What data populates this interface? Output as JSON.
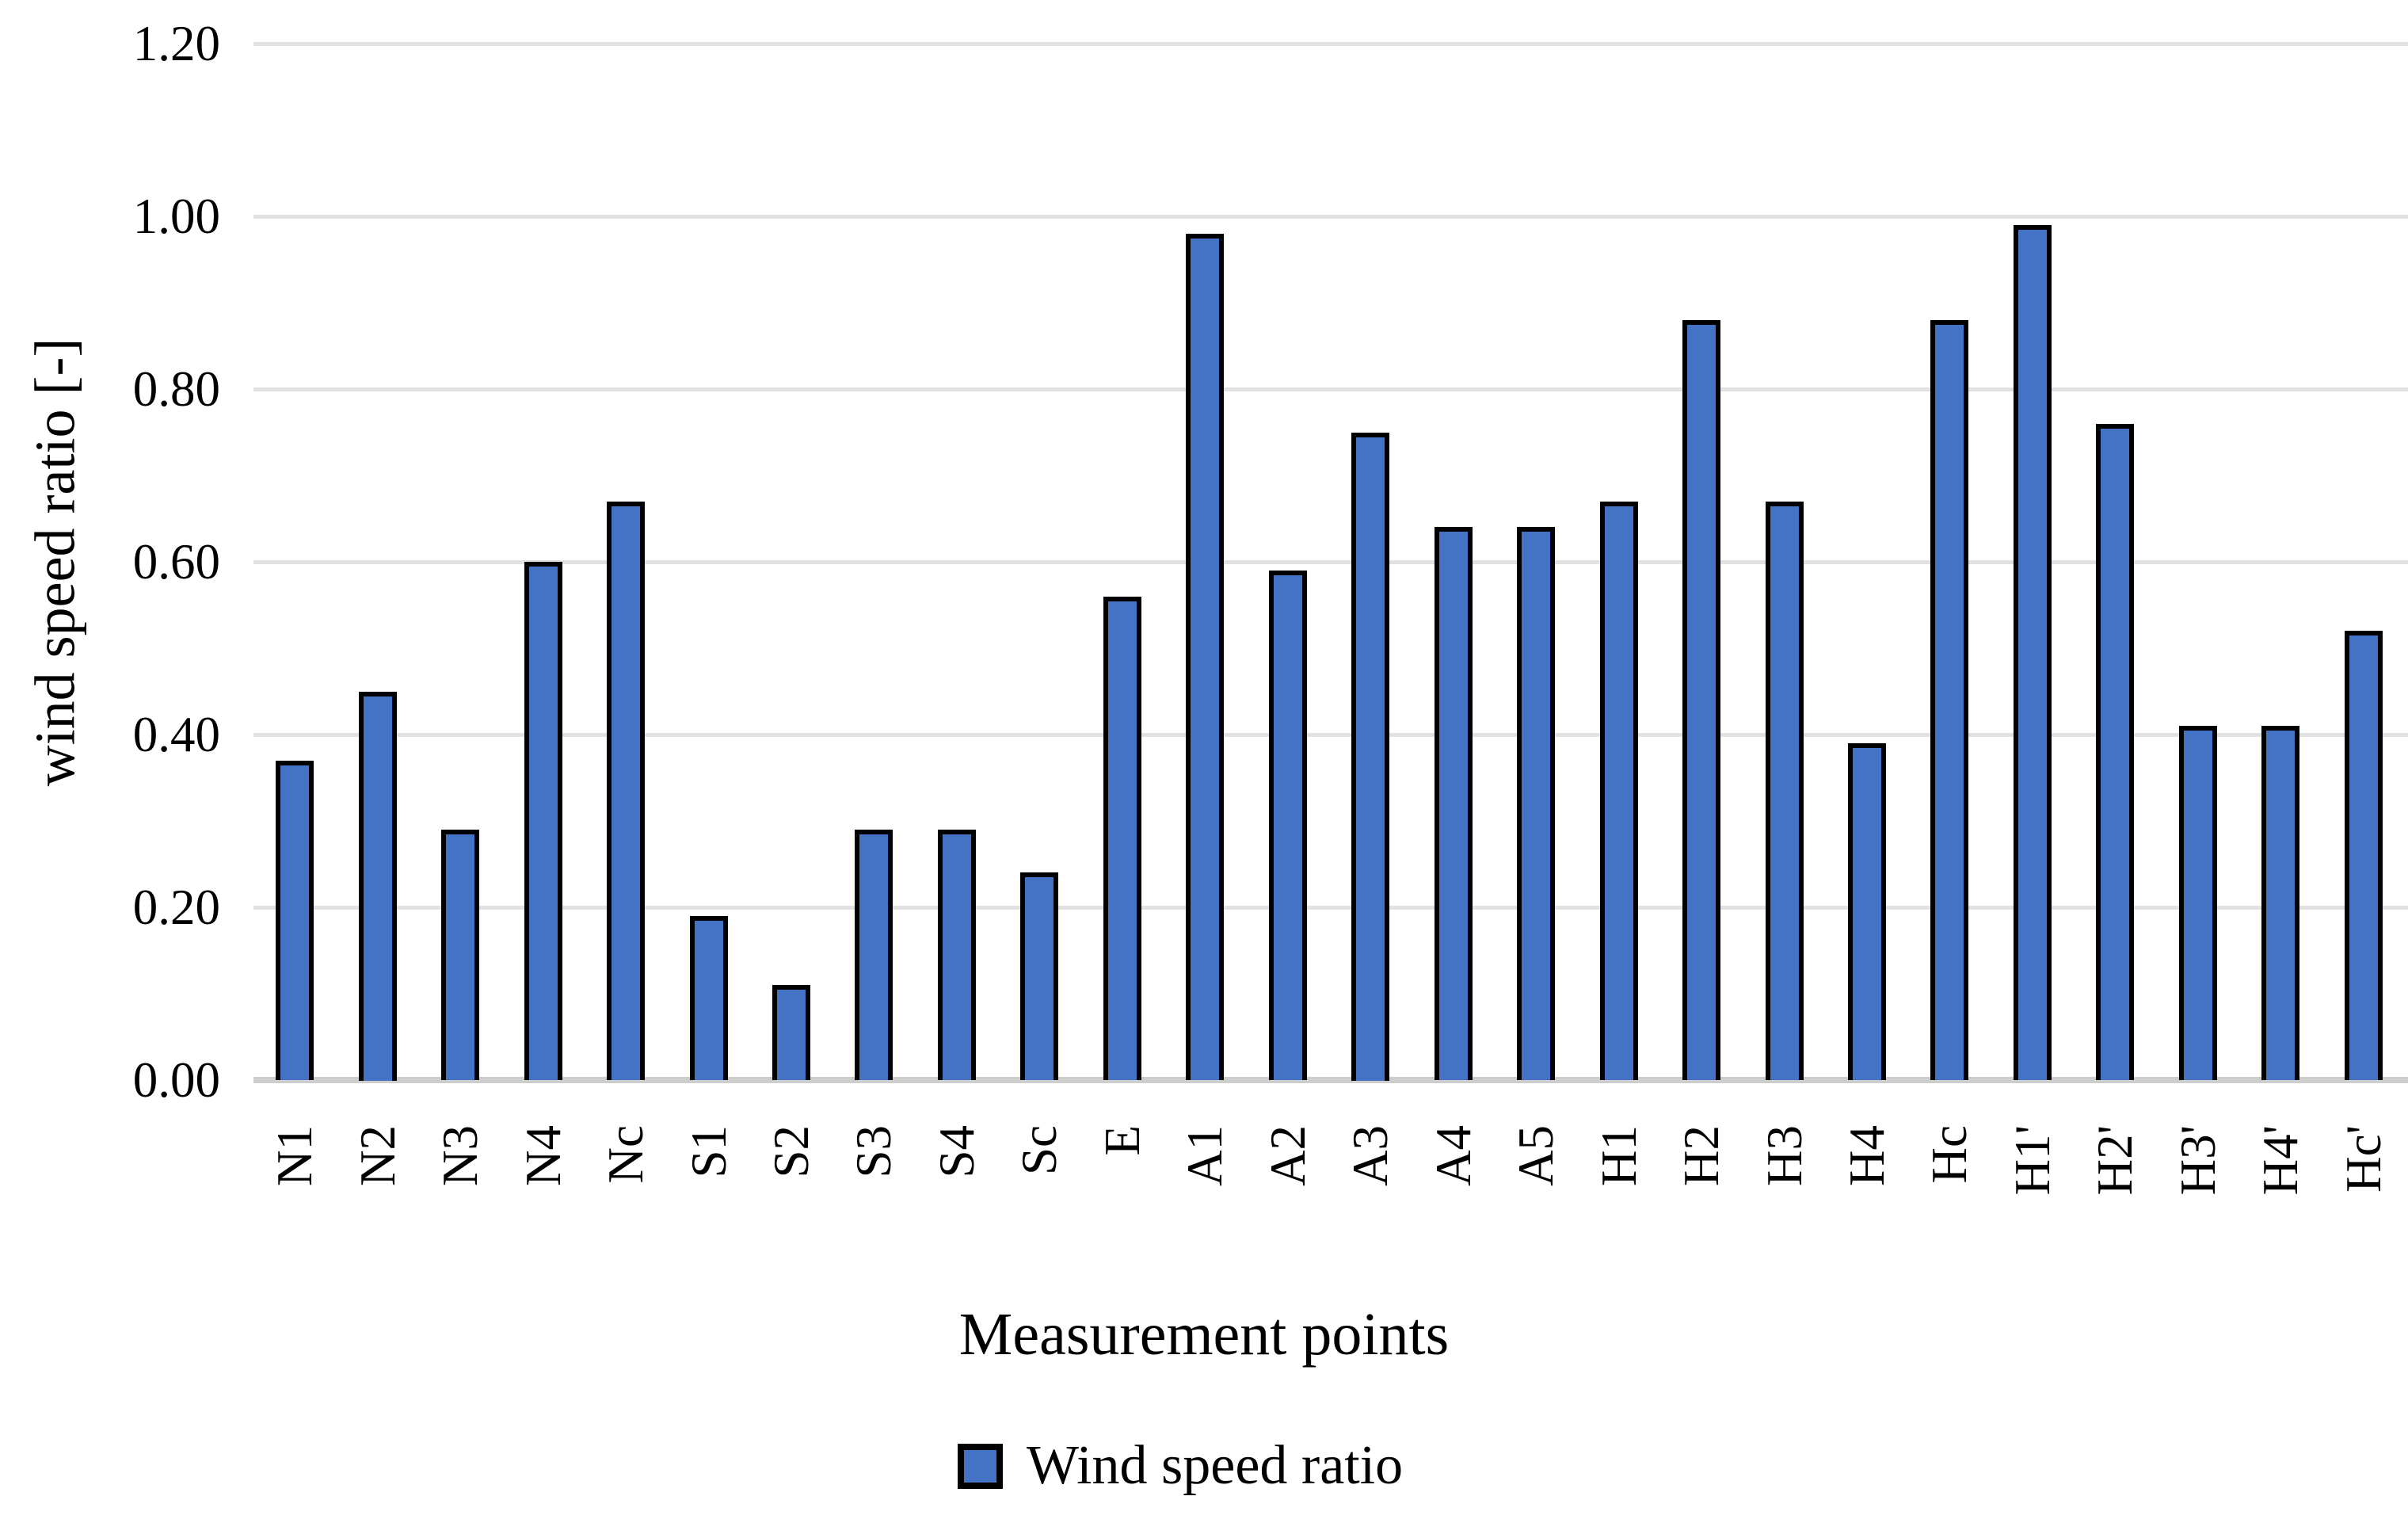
{
  "chart_data": {
    "type": "bar",
    "title": "",
    "categories": [
      "N1",
      "N2",
      "N3",
      "N4",
      "Nc",
      "S1",
      "S2",
      "S3",
      "S4",
      "Sc",
      "E",
      "A1",
      "A2",
      "A3",
      "A4",
      "A5",
      "H1",
      "H2",
      "H3",
      "H4",
      "Hc",
      "H1'",
      "H2'",
      "H3'",
      "H4'",
      "Hc'"
    ],
    "values": [
      0.37,
      0.45,
      0.29,
      0.6,
      0.67,
      0.19,
      0.11,
      0.29,
      0.29,
      0.24,
      0.56,
      0.98,
      0.59,
      0.75,
      0.64,
      0.64,
      0.67,
      0.88,
      0.67,
      0.39,
      0.88,
      0.99,
      0.76,
      0.41,
      0.41,
      0.52
    ],
    "series_name": "Wind speed ratio",
    "xlabel": "Measurement points",
    "ylabel": "wind speed ratio [-]",
    "ylim": [
      0,
      1.2
    ],
    "ytick_values": [
      0.0,
      0.2,
      0.4,
      0.6,
      0.8,
      1.0,
      1.2
    ],
    "ytick_labels": [
      "0.00",
      "0.20",
      "0.40",
      "0.60",
      "0.80",
      "1.00",
      "1.20"
    ],
    "grid": "horizontal",
    "legend_position": "bottom",
    "bar_fill_color": "#4472C4",
    "bar_border_color": "#000000",
    "gridline_color": "#E2E2E2",
    "axis_line_color": "#CDCDCD"
  },
  "legend": {
    "label": "Wind speed ratio"
  }
}
